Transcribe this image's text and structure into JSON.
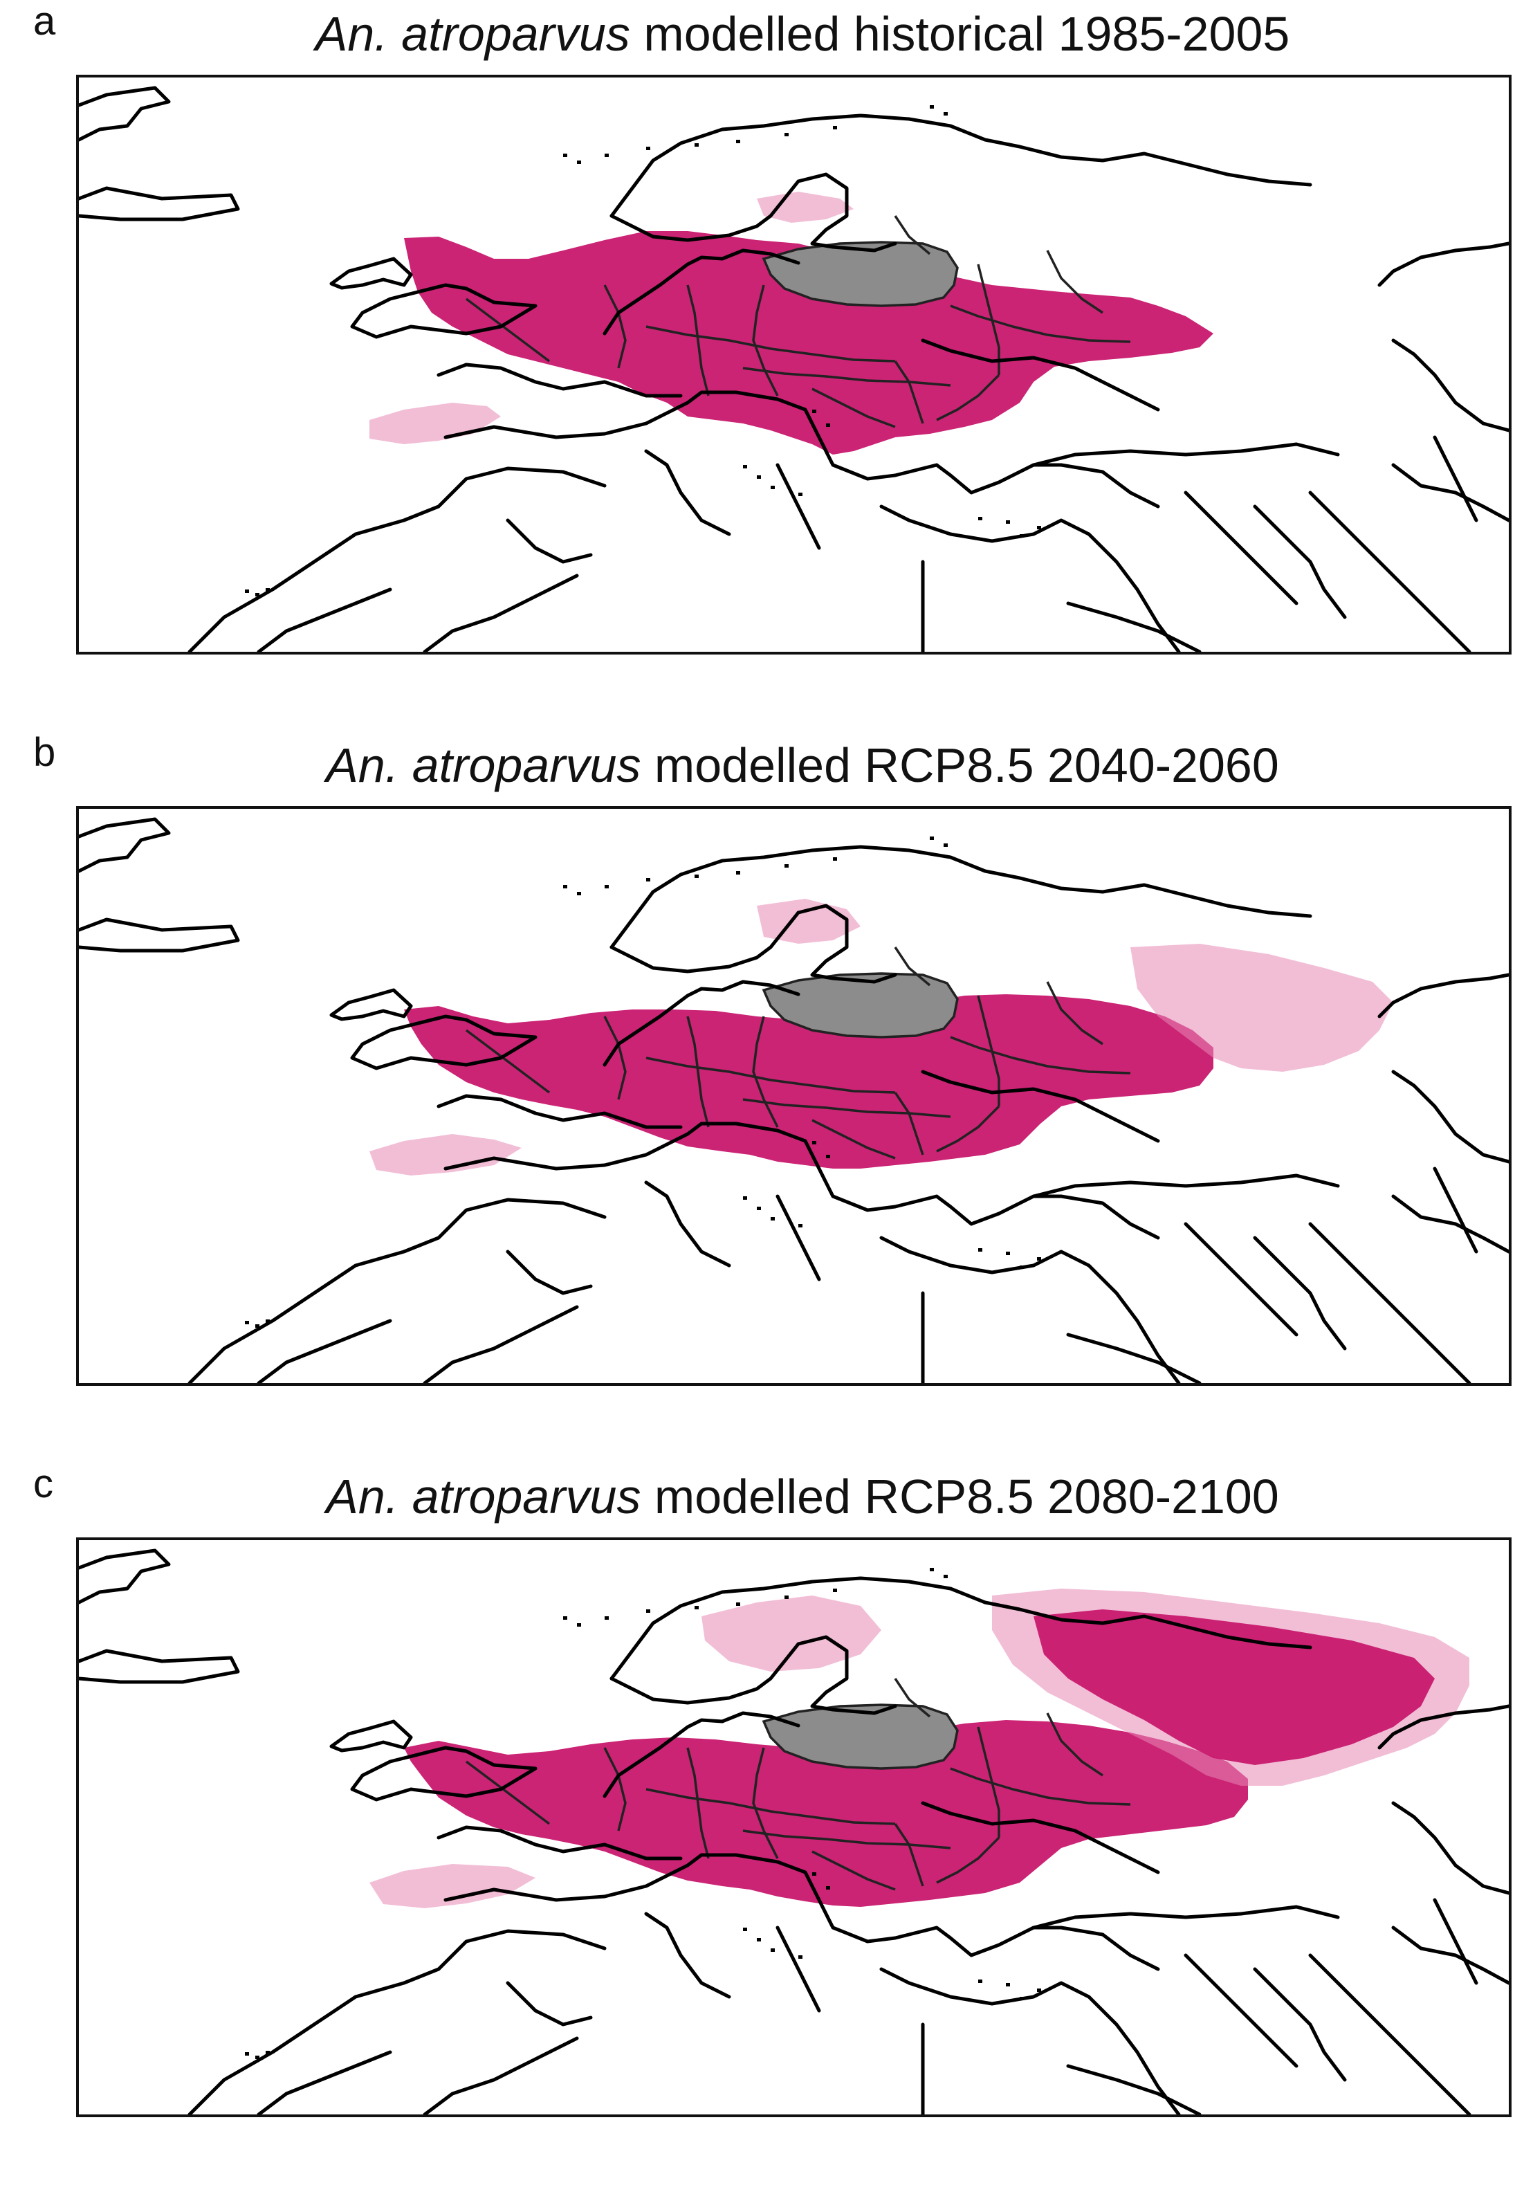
{
  "figure": {
    "panels": [
      {
        "letter": "a",
        "title_species": "An. atroparvus",
        "title_rest": " modelled historical 1985-2005",
        "suitability_extent": "historical"
      },
      {
        "letter": "b",
        "title_species": "An. atroparvus",
        "title_rest": " modelled RCP8.5 2040-2060",
        "suitability_extent": "mid-century"
      },
      {
        "letter": "c",
        "title_species": "An. atroparvus",
        "title_rest": " modelled RCP8.5 2080-2100",
        "suitability_extent": "end-century"
      }
    ]
  },
  "colors": {
    "suitable_area": "#c8186e",
    "suitable_area_light": "#e889b4",
    "reference_region": "#8c8c8c",
    "borders": "#000000",
    "background": "#ffffff"
  }
}
